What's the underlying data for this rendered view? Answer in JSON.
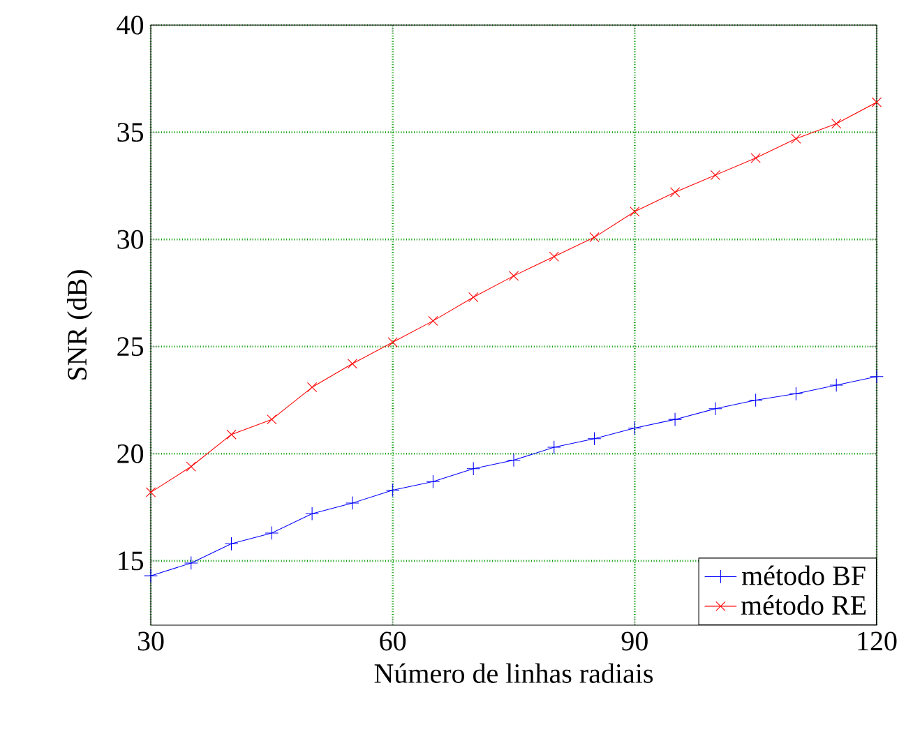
{
  "chart_data": {
    "type": "line",
    "xlabel": "Número de linhas radiais",
    "ylabel": "SNR (dB)",
    "x": [
      30,
      35,
      40,
      45,
      50,
      55,
      60,
      65,
      70,
      75,
      80,
      85,
      90,
      95,
      100,
      105,
      110,
      115,
      120
    ],
    "series": [
      {
        "name": "método BF",
        "color": "#0000ff",
        "marker": "cross",
        "values": [
          14.3,
          14.9,
          15.8,
          16.3,
          17.2,
          17.7,
          18.3,
          18.7,
          19.3,
          19.7,
          20.3,
          20.7,
          21.2,
          21.6,
          22.1,
          22.5,
          22.8,
          23.2,
          23.6
        ]
      },
      {
        "name": "método RE",
        "color": "#ff0000",
        "marker": "x",
        "values": [
          18.2,
          19.4,
          20.9,
          21.6,
          23.1,
          24.2,
          25.2,
          26.2,
          27.3,
          28.3,
          29.2,
          30.1,
          31.3,
          32.2,
          33.0,
          33.8,
          34.7,
          35.4,
          36.4
        ]
      }
    ],
    "xlim": [
      30,
      120
    ],
    "ylim": [
      12,
      40
    ],
    "xticks": [
      30,
      60,
      90,
      120
    ],
    "yticks": [
      15,
      20,
      25,
      30,
      35,
      40
    ],
    "grid": true,
    "legend": "bottom right",
    "line_style": "solid"
  }
}
